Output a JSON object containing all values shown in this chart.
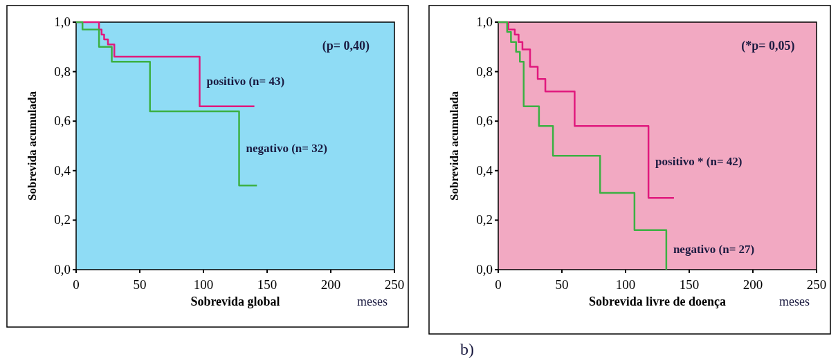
{
  "chart_data": [
    {
      "type": "step",
      "xlabel": "Sobrevida global",
      "ylabel": "Sobrevida acumulada",
      "annotations": [
        "(p= 0,40)",
        "meses"
      ],
      "xlim": [
        0,
        250
      ],
      "ylim": [
        0,
        1
      ],
      "xticks": [
        0,
        50,
        100,
        150,
        200,
        250
      ],
      "yticks": [
        {
          "value": 0,
          "label": "0,0"
        },
        {
          "value": 0.2,
          "label": "0,2"
        },
        {
          "value": 0.4,
          "label": "0,4"
        },
        {
          "value": 0.6,
          "label": "0,6"
        },
        {
          "value": 0.8,
          "label": "0,8"
        },
        {
          "value": 1,
          "label": "1,0"
        }
      ],
      "grid": false,
      "series": [
        {
          "name": "positivo (n= 43)",
          "color": "#e0197d",
          "x": [
            0,
            18,
            20,
            22,
            25,
            30,
            97,
            140
          ],
          "values": [
            1,
            0.97,
            0.95,
            0.93,
            0.91,
            0.86,
            0.66,
            0.66
          ]
        },
        {
          "name": "negativo (n= 32)",
          "color": "#3cb043",
          "x": [
            0,
            5,
            18,
            28,
            58,
            128,
            142
          ],
          "values": [
            1,
            0.97,
            0.9,
            0.84,
            0.64,
            0.34,
            0.34
          ]
        }
      ]
    },
    {
      "type": "step",
      "xlabel": "Sobrevida livre de doença",
      "ylabel": "Sobrevida acumulada",
      "annotations": [
        "(*p= 0,05)",
        "meses",
        "b)"
      ],
      "xlim": [
        0,
        250
      ],
      "ylim": [
        0,
        1
      ],
      "xticks": [
        0,
        50,
        100,
        150,
        200,
        250
      ],
      "yticks": [
        {
          "value": 0,
          "label": "0,0"
        },
        {
          "value": 0.2,
          "label": "0,2"
        },
        {
          "value": 0.4,
          "label": "0,4"
        },
        {
          "value": 0.6,
          "label": "0,6"
        },
        {
          "value": 0.8,
          "label": "0,8"
        },
        {
          "value": 1,
          "label": "1,0"
        }
      ],
      "grid": false,
      "series": [
        {
          "name": "positivo * (n= 42)",
          "color": "#e0197d",
          "x": [
            0,
            8,
            13,
            16,
            19,
            25,
            31,
            37,
            60,
            118,
            138
          ],
          "values": [
            1,
            0.97,
            0.95,
            0.92,
            0.89,
            0.82,
            0.77,
            0.72,
            0.58,
            0.29,
            0.29
          ]
        },
        {
          "name": "negativo (n= 27)",
          "color": "#3cb043",
          "x": [
            0,
            7,
            10,
            14,
            17,
            20,
            32,
            43,
            80,
            107,
            132
          ],
          "values": [
            1,
            0.96,
            0.92,
            0.88,
            0.84,
            0.66,
            0.58,
            0.46,
            0.31,
            0.16,
            0
          ]
        }
      ]
    }
  ]
}
